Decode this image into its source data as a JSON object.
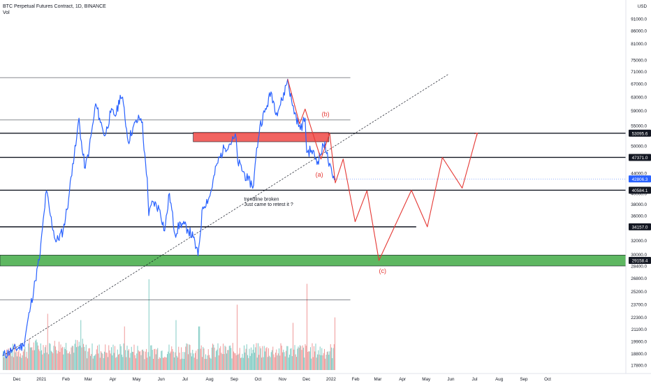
{
  "header": {
    "symbol_line": "BTC Perpetual Futures Contract, 1D, BINANCE",
    "volume_label": "Vol"
  },
  "colors": {
    "price_line": "#2962ff",
    "projection": "#e53935",
    "volume_up": "#80cbc4",
    "volume_down": "#ef9a9a",
    "resistance_zone": "#ef5350",
    "support_zone": "#4caf50",
    "current_price_tag": "#2962ff"
  },
  "chart_data": {
    "type": "line",
    "currency": "USD",
    "y_ticks": [
      17800,
      18800,
      19900,
      21100,
      22300,
      23700,
      25200,
      26800,
      28400,
      30000,
      32000,
      34000,
      36000,
      38000,
      40000,
      44000,
      47000,
      50000,
      55000,
      59000,
      63000,
      67000,
      71000,
      75000,
      81000,
      86000,
      91000
    ],
    "x_ticks": [
      "Dec",
      "2021",
      "Feb",
      "Mar",
      "Apr",
      "May",
      "Jun",
      "Jul",
      "Aug",
      "Sep",
      "Oct",
      "Nov",
      "Dec",
      "2022",
      "Feb",
      "Mar",
      "Apr",
      "May",
      "Jun",
      "Jul",
      "Aug",
      "Sep",
      "Oct"
    ],
    "price_tags": [
      {
        "label": "53095.6",
        "value": 53095.6,
        "style": "level"
      },
      {
        "label": "47371.0",
        "value": 47371.0,
        "style": "level"
      },
      {
        "label": "42806.3",
        "value": 42806.3,
        "style": "current"
      },
      {
        "label": "40584.1",
        "value": 40584.1,
        "style": "level"
      },
      {
        "label": "34157.0",
        "value": 34157.0,
        "style": "level"
      },
      {
        "label": "29158.4",
        "value": 29158.4,
        "style": "level"
      }
    ],
    "levels": [
      {
        "value": 69000,
        "style": "thin",
        "x_end": "2022-01-28"
      },
      {
        "value": 56500,
        "style": "thin",
        "x_end": "2022-01-28"
      },
      {
        "value": 53095.6,
        "style": "bold",
        "x_end": "right"
      },
      {
        "value": 47371.0,
        "style": "bold",
        "x_end": "right"
      },
      {
        "value": 40584.1,
        "style": "bold",
        "x_end": "right"
      },
      {
        "value": 34157.0,
        "style": "bold",
        "x_end": "2022-04-21"
      },
      {
        "value": 24200,
        "style": "thin",
        "x_end": "2022-01-28"
      }
    ],
    "zones": [
      {
        "name": "resistance",
        "x_start": "2021-07-14",
        "x_end": "2022-01-01",
        "y_low": 51000,
        "y_high": 53300
      },
      {
        "name": "support",
        "x_start": "left",
        "x_end": "right",
        "y_low": 28400,
        "y_high": 29900
      }
    ],
    "trendline": {
      "x1": "2020-11-16",
      "y1": 18600,
      "x2": "2022-05-31",
      "y2": 70000
    },
    "series": [
      {
        "name": "price",
        "type": "line",
        "points": [
          [
            "2020-11-16",
            18600
          ],
          [
            "2020-11-28",
            19100
          ],
          [
            "2020-12-12",
            19500
          ],
          [
            "2020-12-21",
            23500
          ],
          [
            "2020-12-27",
            26500
          ],
          [
            "2021-01-02",
            30000
          ],
          [
            "2021-01-07",
            36500
          ],
          [
            "2021-01-10",
            40500
          ],
          [
            "2021-01-15",
            36000
          ],
          [
            "2021-01-22",
            31800
          ],
          [
            "2021-01-31",
            33500
          ],
          [
            "2021-02-07",
            39000
          ],
          [
            "2021-02-12",
            46000
          ],
          [
            "2021-02-16",
            50000
          ],
          [
            "2021-02-20",
            57000
          ],
          [
            "2021-02-24",
            49000
          ],
          [
            "2021-02-28",
            45000
          ],
          [
            "2021-03-05",
            49500
          ],
          [
            "2021-03-10",
            56000
          ],
          [
            "2021-03-13",
            61000
          ],
          [
            "2021-03-18",
            57000
          ],
          [
            "2021-03-22",
            54000
          ],
          [
            "2021-03-25",
            52500
          ],
          [
            "2021-04-01",
            58500
          ],
          [
            "2021-04-08",
            58000
          ],
          [
            "2021-04-13",
            63500
          ],
          [
            "2021-04-17",
            61000
          ],
          [
            "2021-04-23",
            51000
          ],
          [
            "2021-04-29",
            54500
          ],
          [
            "2021-05-07",
            57000
          ],
          [
            "2021-05-11",
            56000
          ],
          [
            "2021-05-13",
            49000
          ],
          [
            "2021-05-17",
            43000
          ],
          [
            "2021-05-19",
            36000
          ],
          [
            "2021-05-24",
            38500
          ],
          [
            "2021-06-02",
            37000
          ],
          [
            "2021-06-08",
            33500
          ],
          [
            "2021-06-14",
            40000
          ],
          [
            "2021-06-21",
            33000
          ],
          [
            "2021-06-28",
            34800
          ],
          [
            "2021-07-07",
            33800
          ],
          [
            "2021-07-14",
            32500
          ],
          [
            "2021-07-20",
            29800
          ],
          [
            "2021-07-26",
            37500
          ],
          [
            "2021-08-04",
            39500
          ],
          [
            "2021-08-13",
            46000
          ],
          [
            "2021-08-22",
            49500
          ],
          [
            "2021-09-06",
            52000
          ],
          [
            "2021-09-08",
            46500
          ],
          [
            "2021-09-21",
            42500
          ],
          [
            "2021-09-28",
            41500
          ],
          [
            "2021-10-01",
            47500
          ],
          [
            "2021-10-06",
            55000
          ],
          [
            "2021-10-15",
            60500
          ],
          [
            "2021-10-20",
            64500
          ],
          [
            "2021-10-27",
            58500
          ],
          [
            "2021-11-03",
            62000
          ],
          [
            "2021-11-10",
            68500
          ],
          [
            "2021-11-16",
            60500
          ],
          [
            "2021-11-26",
            54000
          ],
          [
            "2021-12-02",
            57000
          ],
          [
            "2021-12-04",
            48500
          ],
          [
            "2021-12-10",
            49000
          ],
          [
            "2021-12-18",
            46500
          ],
          [
            "2021-12-27",
            51000
          ],
          [
            "2021-12-31",
            46500
          ],
          [
            "2022-01-06",
            43000
          ],
          [
            "2022-01-09",
            42806.3
          ]
        ]
      },
      {
        "name": "projection",
        "type": "line",
        "points": [
          [
            "2021-11-10",
            68500
          ],
          [
            "2021-11-25",
            55500
          ],
          [
            "2021-12-02",
            59500
          ],
          [
            "2021-12-22",
            47000
          ],
          [
            "2022-01-02",
            53095.6
          ],
          [
            "2022-01-09",
            42000
          ],
          [
            "2022-01-19",
            47000
          ],
          [
            "2022-02-03",
            35000
          ],
          [
            "2022-02-18",
            40500
          ],
          [
            "2022-03-05",
            29158.4
          ],
          [
            "2022-04-15",
            40584.1
          ],
          [
            "2022-05-05",
            34157
          ],
          [
            "2022-05-24",
            47371
          ],
          [
            "2022-06-18",
            41000
          ],
          [
            "2022-07-07",
            53095.6
          ]
        ]
      }
    ],
    "annotations": [
      {
        "text": "(b)",
        "x": "2021-12-23",
        "y": 57500,
        "color": "#e53935"
      },
      {
        "text": "(a)",
        "x": "2021-12-15",
        "y": 43300,
        "color": "#e53935"
      },
      {
        "text": "(c)",
        "x": "2022-03-05",
        "y": 27500,
        "color": "#e53935"
      },
      {
        "text": "trendline broken",
        "x": "2021-09-16",
        "y": 38600,
        "color": "#131722"
      },
      {
        "text": "Just came to retest it ?",
        "x": "2021-09-16",
        "y": 37700,
        "color": "#131722"
      }
    ],
    "volume": {
      "start": "2020-11-16",
      "end": "2022-01-09",
      "spikes": [
        {
          "x": "2021-01-11",
          "level": 0.62
        },
        {
          "x": "2021-02-22",
          "level": 0.55
        },
        {
          "x": "2021-04-18",
          "level": 0.48
        },
        {
          "x": "2021-05-19",
          "level": 1.0
        },
        {
          "x": "2021-06-22",
          "level": 0.55
        },
        {
          "x": "2021-07-21",
          "level": 0.48
        },
        {
          "x": "2021-09-07",
          "level": 0.72
        },
        {
          "x": "2021-11-16",
          "level": 0.52
        },
        {
          "x": "2021-12-04",
          "level": 0.95
        },
        {
          "x": "2022-01-08",
          "level": 0.58
        }
      ]
    }
  }
}
